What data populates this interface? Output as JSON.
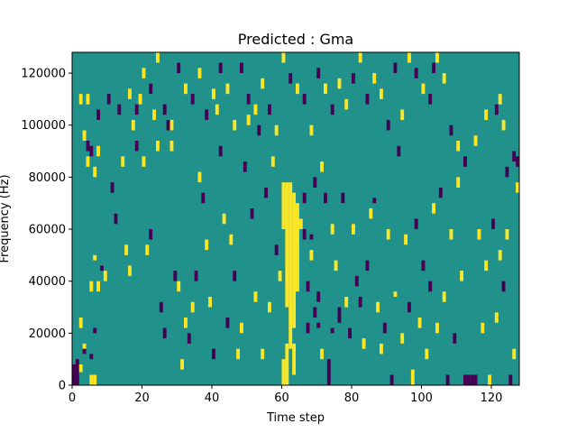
{
  "chart_data": {
    "type": "heatmap",
    "title": "Predicted : Gma",
    "xlabel": "Time step",
    "ylabel": "Frequency (Hz)",
    "xlim": [
      0,
      128
    ],
    "ylim": [
      0,
      128000
    ],
    "x_ticks": [
      0,
      20,
      40,
      60,
      80,
      100,
      120
    ],
    "y_ticks": [
      0,
      20000,
      40000,
      60000,
      80000,
      100000,
      120000
    ],
    "x_tick_labels": [
      "0",
      "20",
      "40",
      "60",
      "80",
      "100",
      "120"
    ],
    "y_tick_labels": [
      "0",
      "20000",
      "40000",
      "60000",
      "80000",
      "100000",
      "120000"
    ],
    "grid": false,
    "legend": "none",
    "n_time_steps": 128,
    "n_freq_bins": 128,
    "colormap": {
      "background_value": 0,
      "values": {
        "-1": "#440154",
        "0": "#21918c",
        "1": "#fde725"
      }
    },
    "cells": [
      [
        0,
        0,
        8000,
        -1
      ],
      [
        1,
        0,
        10000,
        -1
      ],
      [
        2,
        5000,
        8000,
        1
      ],
      [
        2,
        22000,
        26000,
        1
      ],
      [
        3,
        12000,
        14000,
        -1
      ],
      [
        3,
        14000,
        16000,
        1
      ],
      [
        5,
        0,
        4000,
        1
      ],
      [
        5,
        10000,
        12000,
        -1
      ],
      [
        5,
        36000,
        40000,
        1
      ],
      [
        6,
        0,
        4000,
        1
      ],
      [
        6,
        20000,
        22000,
        -1
      ],
      [
        6,
        48000,
        50000,
        1
      ],
      [
        7,
        36000,
        40000,
        1
      ],
      [
        8,
        44000,
        46000,
        -1
      ],
      [
        9,
        40000,
        44000,
        1
      ],
      [
        2,
        108000,
        112000,
        1
      ],
      [
        3,
        94000,
        98000,
        1
      ],
      [
        4,
        108000,
        112000,
        1
      ],
      [
        4,
        90000,
        94000,
        -1
      ],
      [
        4,
        84000,
        88000,
        1
      ],
      [
        5,
        88000,
        92000,
        -1
      ],
      [
        6,
        80000,
        84000,
        1
      ],
      [
        7,
        102000,
        106000,
        -1
      ],
      [
        7,
        88000,
        92000,
        1
      ],
      [
        10,
        108000,
        112000,
        -1
      ],
      [
        11,
        74000,
        78000,
        -1
      ],
      [
        12,
        62000,
        66000,
        -1
      ],
      [
        13,
        104000,
        108000,
        -1
      ],
      [
        14,
        84000,
        88000,
        1
      ],
      [
        15,
        50000,
        54000,
        1
      ],
      [
        16,
        42000,
        46000,
        1
      ],
      [
        17,
        98000,
        102000,
        1
      ],
      [
        18,
        90000,
        94000,
        -1
      ],
      [
        19,
        108000,
        112000,
        1
      ],
      [
        20,
        84000,
        88000,
        1
      ],
      [
        21,
        50000,
        54000,
        1
      ],
      [
        22,
        56000,
        60000,
        -1
      ],
      [
        23,
        102000,
        106000,
        1
      ],
      [
        24,
        90000,
        94000,
        1
      ],
      [
        25,
        28000,
        32000,
        -1
      ],
      [
        26,
        18000,
        22000,
        -1
      ],
      [
        27,
        98000,
        102000,
        -1
      ],
      [
        28,
        90000,
        94000,
        1
      ],
      [
        29,
        40000,
        44000,
        -1
      ],
      [
        30,
        36000,
        40000,
        1
      ],
      [
        31,
        6000,
        10000,
        1
      ],
      [
        32,
        22000,
        26000,
        1
      ],
      [
        33,
        16000,
        20000,
        -1
      ],
      [
        34,
        28000,
        32000,
        1
      ],
      [
        35,
        40000,
        44000,
        -1
      ],
      [
        36,
        78000,
        82000,
        1
      ],
      [
        37,
        70000,
        74000,
        -1
      ],
      [
        38,
        52000,
        56000,
        1
      ],
      [
        39,
        30000,
        34000,
        1
      ],
      [
        40,
        10000,
        14000,
        -1
      ],
      [
        41,
        104000,
        108000,
        1
      ],
      [
        42,
        88000,
        92000,
        -1
      ],
      [
        43,
        62000,
        66000,
        1
      ],
      [
        44,
        22000,
        26000,
        -1
      ],
      [
        45,
        54000,
        58000,
        1
      ],
      [
        46,
        40000,
        44000,
        -1
      ],
      [
        47,
        10000,
        14000,
        1
      ],
      [
        48,
        20000,
        24000,
        1
      ],
      [
        49,
        82000,
        86000,
        -1
      ],
      [
        50,
        100000,
        104000,
        1
      ],
      [
        51,
        64000,
        68000,
        -1
      ],
      [
        52,
        32000,
        36000,
        1
      ],
      [
        53,
        96000,
        100000,
        -1
      ],
      [
        54,
        10000,
        14000,
        1
      ],
      [
        55,
        72000,
        76000,
        -1
      ],
      [
        56,
        28000,
        32000,
        1
      ],
      [
        57,
        84000,
        88000,
        1
      ],
      [
        58,
        50000,
        54000,
        -1
      ],
      [
        59,
        40000,
        44000,
        1
      ],
      [
        60,
        0,
        10000,
        1
      ],
      [
        60,
        60000,
        78000,
        1
      ],
      [
        61,
        0,
        16000,
        1
      ],
      [
        61,
        30000,
        78000,
        1
      ],
      [
        62,
        14000,
        78000,
        1
      ],
      [
        63,
        22000,
        74000,
        1
      ],
      [
        63,
        4000,
        16000,
        1
      ],
      [
        64,
        36000,
        70000,
        1
      ],
      [
        65,
        60000,
        64000,
        1
      ],
      [
        66,
        70000,
        74000,
        -1
      ],
      [
        66,
        56000,
        60000,
        -1
      ],
      [
        67,
        20000,
        24000,
        -1
      ],
      [
        67,
        36000,
        40000,
        -1
      ],
      [
        68,
        56000,
        58000,
        -1
      ],
      [
        68,
        48000,
        52000,
        1
      ],
      [
        69,
        26000,
        30000,
        -1
      ],
      [
        69,
        76000,
        80000,
        -1
      ],
      [
        70,
        22000,
        24000,
        -1
      ],
      [
        70,
        32000,
        36000,
        -1
      ],
      [
        71,
        82000,
        86000,
        1
      ],
      [
        71,
        10000,
        14000,
        1
      ],
      [
        72,
        70000,
        74000,
        -1
      ],
      [
        73,
        0,
        10000,
        -1
      ],
      [
        74,
        58000,
        62000,
        1
      ],
      [
        74,
        20000,
        22000,
        -1
      ],
      [
        75,
        44000,
        48000,
        1
      ],
      [
        76,
        24000,
        30000,
        -1
      ],
      [
        77,
        70000,
        74000,
        -1
      ],
      [
        78,
        30000,
        34000,
        1
      ],
      [
        79,
        18000,
        22000,
        -1
      ],
      [
        80,
        58000,
        62000,
        1
      ],
      [
        81,
        38000,
        42000,
        -1
      ],
      [
        82,
        30000,
        34000,
        -1
      ],
      [
        83,
        14000,
        18000,
        1
      ],
      [
        84,
        44000,
        48000,
        -1
      ],
      [
        85,
        64000,
        68000,
        1
      ],
      [
        86,
        70000,
        72000,
        -1
      ],
      [
        87,
        28000,
        32000,
        1
      ],
      [
        88,
        12000,
        16000,
        1
      ],
      [
        89,
        20000,
        24000,
        -1
      ],
      [
        90,
        56000,
        60000,
        1
      ],
      [
        91,
        0,
        4000,
        -1
      ],
      [
        92,
        34000,
        36000,
        1
      ],
      [
        93,
        88000,
        92000,
        -1
      ],
      [
        94,
        16000,
        20000,
        1
      ],
      [
        95,
        54000,
        58000,
        1
      ],
      [
        96,
        28000,
        32000,
        -1
      ],
      [
        97,
        0,
        6000,
        1
      ],
      [
        98,
        60000,
        64000,
        -1
      ],
      [
        99,
        22000,
        26000,
        1
      ],
      [
        100,
        44000,
        48000,
        -1
      ],
      [
        101,
        10000,
        14000,
        1
      ],
      [
        102,
        36000,
        40000,
        -1
      ],
      [
        103,
        66000,
        70000,
        1
      ],
      [
        104,
        20000,
        24000,
        1
      ],
      [
        105,
        72000,
        76000,
        -1
      ],
      [
        106,
        32000,
        36000,
        1
      ],
      [
        107,
        0,
        4000,
        -1
      ],
      [
        108,
        56000,
        60000,
        1
      ],
      [
        109,
        16000,
        20000,
        -1
      ],
      [
        110,
        76000,
        80000,
        1
      ],
      [
        111,
        40000,
        44000,
        1
      ],
      [
        112,
        0,
        4000,
        -1
      ],
      [
        113,
        0,
        4000,
        -1
      ],
      [
        114,
        0,
        4000,
        -1
      ],
      [
        115,
        0,
        4000,
        -1
      ],
      [
        116,
        56000,
        60000,
        1
      ],
      [
        117,
        20000,
        24000,
        1
      ],
      [
        118,
        44000,
        48000,
        1
      ],
      [
        119,
        0,
        4000,
        1
      ],
      [
        120,
        60000,
        64000,
        -1
      ],
      [
        121,
        24000,
        28000,
        1
      ],
      [
        122,
        48000,
        52000,
        1
      ],
      [
        123,
        36000,
        40000,
        -1
      ],
      [
        124,
        56000,
        60000,
        1
      ],
      [
        125,
        0,
        4000,
        -1
      ],
      [
        126,
        10000,
        14000,
        1
      ],
      [
        127,
        74000,
        78000,
        1
      ],
      [
        127,
        84000,
        88000,
        -1
      ],
      [
        126,
        86000,
        90000,
        -1
      ],
      [
        124,
        80000,
        84000,
        -1
      ],
      [
        123,
        98000,
        102000,
        1
      ],
      [
        122,
        108000,
        112000,
        1
      ],
      [
        121,
        104000,
        108000,
        -1
      ],
      [
        118,
        102000,
        106000,
        1
      ],
      [
        115,
        92000,
        96000,
        1
      ],
      [
        112,
        84000,
        88000,
        -1
      ],
      [
        110,
        90000,
        94000,
        1
      ],
      [
        108,
        96000,
        100000,
        -1
      ],
      [
        106,
        116000,
        120000,
        1
      ],
      [
        104,
        124000,
        128000,
        1
      ],
      [
        103,
        120000,
        124000,
        -1
      ],
      [
        102,
        108000,
        112000,
        -1
      ],
      [
        100,
        112000,
        116000,
        1
      ],
      [
        98,
        118000,
        122000,
        -1
      ],
      [
        96,
        124000,
        128000,
        1
      ],
      [
        94,
        102000,
        106000,
        1
      ],
      [
        92,
        120000,
        124000,
        -1
      ],
      [
        90,
        98000,
        102000,
        -1
      ],
      [
        88,
        110000,
        114000,
        1
      ],
      [
        86,
        116000,
        120000,
        1
      ],
      [
        84,
        108000,
        112000,
        -1
      ],
      [
        82,
        124000,
        128000,
        1
      ],
      [
        80,
        116000,
        120000,
        -1
      ],
      [
        78,
        106000,
        110000,
        1
      ],
      [
        76,
        114000,
        118000,
        1
      ],
      [
        74,
        104000,
        108000,
        -1
      ],
      [
        72,
        112000,
        116000,
        1
      ],
      [
        70,
        118000,
        122000,
        -1
      ],
      [
        68,
        96000,
        100000,
        1
      ],
      [
        66,
        108000,
        112000,
        -1
      ],
      [
        64,
        112000,
        116000,
        1
      ],
      [
        62,
        116000,
        120000,
        -1
      ],
      [
        60,
        124000,
        128000,
        1
      ],
      [
        58,
        96000,
        100000,
        1
      ],
      [
        56,
        104000,
        108000,
        -1
      ],
      [
        54,
        114000,
        118000,
        1
      ],
      [
        52,
        104000,
        108000,
        1
      ],
      [
        50,
        108000,
        112000,
        -1
      ],
      [
        48,
        120000,
        124000,
        -1
      ],
      [
        46,
        98000,
        102000,
        1
      ],
      [
        44,
        112000,
        116000,
        1
      ],
      [
        42,
        120000,
        124000,
        -1
      ],
      [
        40,
        110000,
        114000,
        1
      ],
      [
        38,
        102000,
        106000,
        -1
      ],
      [
        36,
        118000,
        122000,
        1
      ],
      [
        34,
        108000,
        112000,
        -1
      ],
      [
        32,
        112000,
        116000,
        1
      ],
      [
        30,
        120000,
        124000,
        -1
      ],
      [
        28,
        98000,
        102000,
        1
      ],
      [
        26,
        104000,
        108000,
        -1
      ],
      [
        24,
        124000,
        128000,
        1
      ],
      [
        22,
        112000,
        116000,
        -1
      ],
      [
        20,
        118000,
        122000,
        1
      ],
      [
        18,
        104000,
        108000,
        -1
      ],
      [
        16,
        110000,
        114000,
        1
      ]
    ]
  }
}
